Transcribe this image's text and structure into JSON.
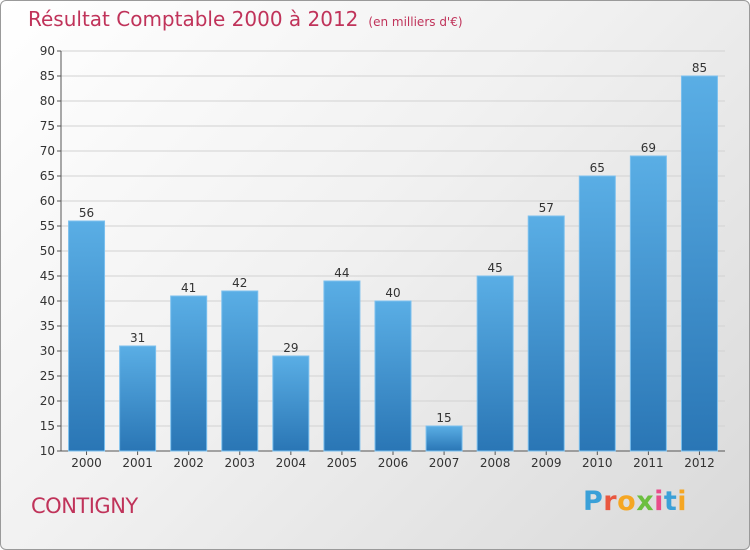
{
  "header": {
    "title": "Résultat Comptable 2000 à 2012",
    "unit": "(en milliers d'€)"
  },
  "footer": {
    "town": "CONTIGNY",
    "logo_text": "Proxiti",
    "logo_colors": [
      "#3aa0d8",
      "#e9573f",
      "#f5a623",
      "#6cbf3f",
      "#e94b8a",
      "#3aa0d8",
      "#f5a623"
    ]
  },
  "colors": {
    "title": "#c0335a",
    "bar_light": "#5aaee5",
    "bar_dark": "#2a76b5",
    "grid": "#d2d2d2"
  },
  "chart_data": {
    "type": "bar",
    "title": "Résultat Comptable 2000 à 2012",
    "subtitle": "(en milliers d'€)",
    "xlabel": "",
    "ylabel": "",
    "categories": [
      "2000",
      "2001",
      "2002",
      "2003",
      "2004",
      "2005",
      "2006",
      "2007",
      "2008",
      "2009",
      "2010",
      "2011",
      "2012"
    ],
    "values": [
      56,
      31,
      41,
      42,
      29,
      44,
      40,
      15,
      45,
      57,
      65,
      69,
      85
    ],
    "ylim": [
      10,
      90
    ],
    "yticks": [
      10,
      15,
      20,
      25,
      30,
      35,
      40,
      45,
      50,
      55,
      60,
      65,
      70,
      75,
      80,
      85,
      90
    ],
    "grid": true,
    "legend": "none",
    "data_labels": true
  }
}
